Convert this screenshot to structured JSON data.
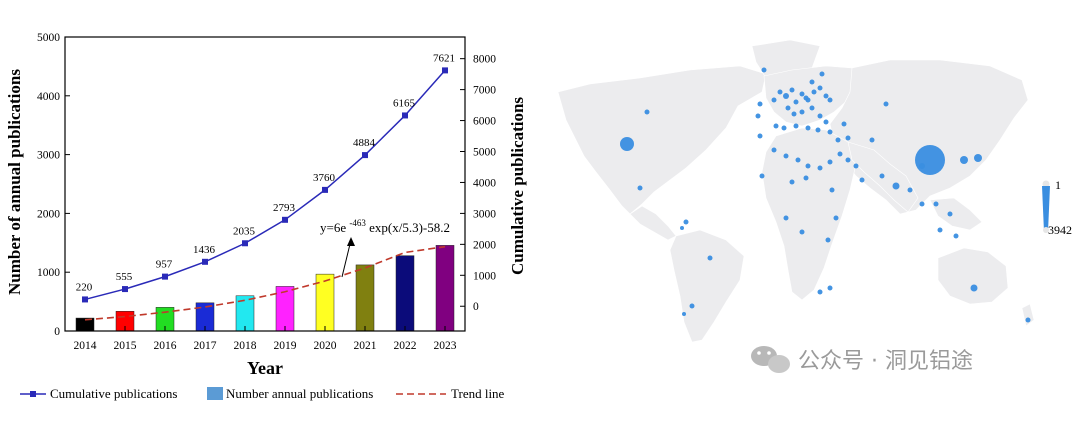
{
  "chart_data": [
    {
      "type": "bar",
      "categories": [
        "2014",
        "2015",
        "2016",
        "2017",
        "2018",
        "2019",
        "2020",
        "2021",
        "2022",
        "2023"
      ],
      "series": [
        {
          "name": "Number annual publications",
          "values": [
            220,
            335,
            402,
            479,
            599,
            758,
            967,
            1124,
            1281,
            1456
          ],
          "colors": [
            "#000000",
            "#ff0000",
            "#22dd22",
            "#1a2bd6",
            "#22e8f0",
            "#ff22ff",
            "#ffff22",
            "#808010",
            "#0b0b7a",
            "#800080"
          ]
        },
        {
          "name": "Cumulative publications",
          "type": "line",
          "axis": "right",
          "values": [
            220,
            555,
            957,
            1436,
            2035,
            2793,
            3760,
            4884,
            6165,
            7621
          ],
          "labels": [
            "220",
            "555",
            "957",
            "1436",
            "2035",
            "2793",
            "3760",
            "4884",
            "6165",
            "7621"
          ],
          "color": "#2a2ab8"
        },
        {
          "name": "Trend line",
          "type": "line-dashed",
          "color": "#c0392b",
          "values": [
            190,
            246,
            320,
            408,
            522,
            668,
            850,
            1072,
            1336,
            1434
          ]
        }
      ],
      "xlabel": "Year",
      "ylabel": "Number of annual publications",
      "y2label": "Cumulative publications",
      "ylim": [
        0,
        5000
      ],
      "y2lim": [
        -800,
        8700
      ],
      "yticks": [
        "0",
        "1000",
        "2000",
        "3000",
        "4000",
        "5000"
      ],
      "y2ticks": [
        "0",
        "1000",
        "2000",
        "3000",
        "4000",
        "5000",
        "6000",
        "7000",
        "8000"
      ],
      "annotation": {
        "prefix": "y=6e",
        "sup": "-463",
        "suffix": "exp(x/5.3)-58.2"
      },
      "legend": {
        "placement": "bottom",
        "items": [
          "Cumulative publications",
          "Number annual publications",
          "Trend line"
        ]
      }
    },
    {
      "type": "map",
      "legend_min": "1",
      "legend_max": "3942",
      "point_color": "#3a8ee0",
      "land_color": "#ececee",
      "watermark": "公众号 · 洞见铝途"
    }
  ]
}
